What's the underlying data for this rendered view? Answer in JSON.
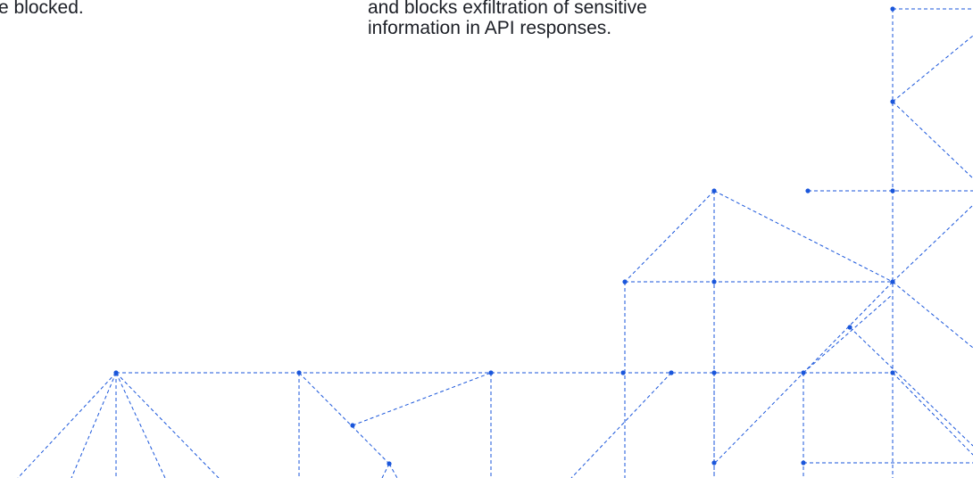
{
  "left_text": "e blocked.",
  "middle_text": {
    "line1": "and blocks exfiltration of sensitive",
    "line2": "information in API responses."
  },
  "colors": {
    "text": "#1c1f26",
    "accent": "#1a56db"
  },
  "decoration": "network-graph-illustration"
}
